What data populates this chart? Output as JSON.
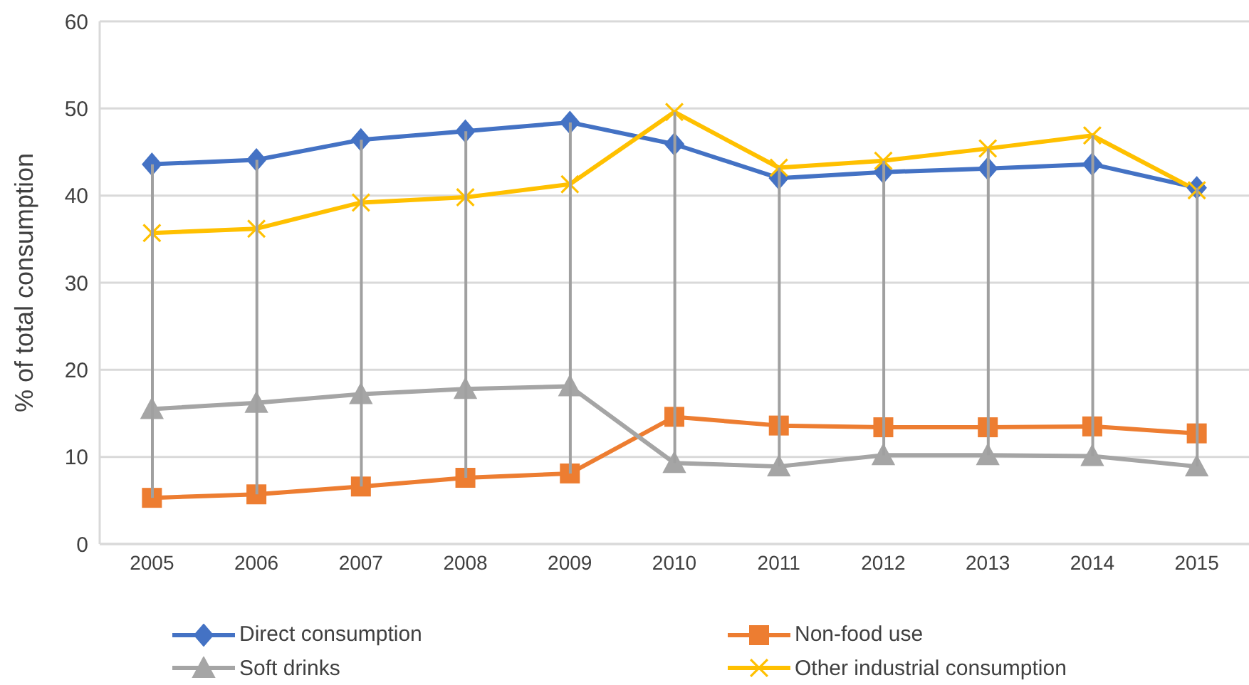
{
  "chart_data": {
    "type": "line",
    "ylabel": "% of total consumption",
    "categories": [
      "2005",
      "2006",
      "2007",
      "2008",
      "2009",
      "2010",
      "2011",
      "2012",
      "2013",
      "2014",
      "2015"
    ],
    "series": [
      {
        "name": "Direct consumption",
        "color": "#4472c4",
        "marker": "diamond",
        "values": [
          43.6,
          44.1,
          46.4,
          47.4,
          48.4,
          45.9,
          42.0,
          42.7,
          43.1,
          43.6,
          40.9
        ]
      },
      {
        "name": "Non-food use",
        "color": "#ed7d31",
        "marker": "square",
        "values": [
          5.3,
          5.7,
          6.6,
          7.6,
          8.1,
          14.6,
          13.6,
          13.4,
          13.4,
          13.5,
          12.7
        ]
      },
      {
        "name": "Soft drinks",
        "color": "#a5a5a5",
        "marker": "triangle",
        "values": [
          15.5,
          16.2,
          17.2,
          17.8,
          18.1,
          9.3,
          8.9,
          10.2,
          10.2,
          10.1,
          8.9
        ]
      },
      {
        "name": "Other industrial consumption",
        "color": "#ffc000",
        "marker": "cross",
        "values": [
          35.7,
          36.2,
          39.2,
          39.8,
          41.3,
          49.6,
          43.2,
          44.0,
          45.4,
          46.9,
          40.6
        ]
      },
      {
        "type": "bar",
        "color": "#a0a0a0",
        "base": [
          5.3,
          5.7,
          6.6,
          7.6,
          8.1,
          9.3,
          8.9,
          10.2,
          10.2,
          10.1,
          8.9
        ],
        "values": [
          38.3,
          38.4,
          39.8,
          39.8,
          40.3,
          40.3,
          34.3,
          33.8,
          35.2,
          36.8,
          32.0
        ]
      }
    ],
    "ylim": [
      0,
      60
    ],
    "yticks": [
      0,
      10,
      20,
      30,
      40,
      50,
      60
    ],
    "grid": "y",
    "legend": "bottom"
  }
}
